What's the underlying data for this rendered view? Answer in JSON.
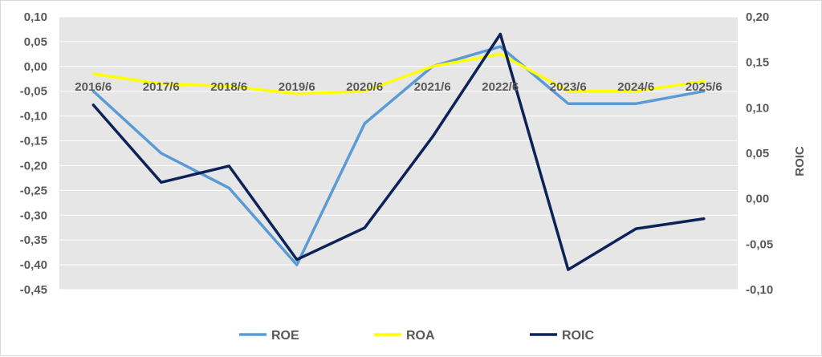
{
  "chart_data": {
    "type": "line",
    "title": "",
    "categories": [
      "2016/6",
      "2017/6",
      "2018/6",
      "2019/6",
      "2020/6",
      "2021/6",
      "2022/6",
      "2023/6",
      "2024/6",
      "2025/6"
    ],
    "y_left": {
      "label": "",
      "min": -0.45,
      "max": 0.1,
      "step": 0.05,
      "ticks": [
        "0,10",
        "0,05",
        "0,00",
        "-0,05",
        "-0,10",
        "-0,15",
        "-0,20",
        "-0,25",
        "-0,30",
        "-0,35",
        "-0,40",
        "-0,45"
      ]
    },
    "y_right": {
      "label": "ROIC",
      "min": -0.1,
      "max": 0.2,
      "step": 0.05,
      "ticks": [
        "0,20",
        "0,15",
        "0,10",
        "0,05",
        "0,00",
        "-0,05",
        "-0,10"
      ]
    },
    "grid": true,
    "legend_position": "bottom",
    "series": [
      {
        "name": "ROE",
        "axis": "left",
        "color": "#5b9bd5",
        "values": [
          -0.05,
          -0.175,
          -0.245,
          -0.4,
          -0.115,
          0.0,
          0.04,
          -0.075,
          -0.075,
          -0.05
        ]
      },
      {
        "name": "ROA",
        "axis": "left",
        "color": "#ffff00",
        "values": [
          -0.015,
          -0.035,
          -0.04,
          -0.055,
          -0.05,
          0.0,
          0.025,
          -0.05,
          -0.05,
          -0.03
        ]
      },
      {
        "name": "ROIC",
        "axis": "right",
        "color": "#0d2257",
        "values": [
          0.103,
          0.018,
          0.036,
          -0.067,
          -0.032,
          0.068,
          0.181,
          -0.078,
          -0.033,
          -0.022
        ]
      }
    ]
  }
}
